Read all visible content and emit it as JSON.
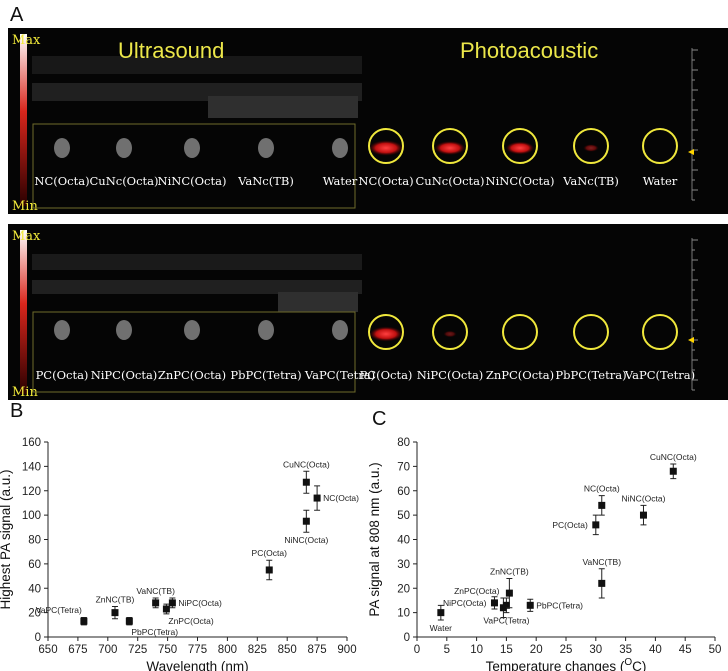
{
  "panel_labels": {
    "a": "A",
    "b": "B",
    "c": "C"
  },
  "panel_a": {
    "scale_max": "Max",
    "scale_min": "Min",
    "top": {
      "ultrasound_title": "Ultrasound",
      "photoacoustic_title": "Photoacoustic",
      "us_labels": [
        "NC(Octa)",
        "CuNc(Octa)",
        "NiNC(Octa)",
        "VaNc(TB)",
        "Water"
      ],
      "pa_labels": [
        "NC(Octa)",
        "CuNc(Octa)",
        "NiNC(Octa)",
        "VaNc(TB)",
        "Water"
      ],
      "pa_intensity": [
        0.95,
        0.8,
        0.7,
        0.15,
        0
      ]
    },
    "bottom": {
      "us_labels": [
        "PC(Octa)",
        "NiPC(Octa)",
        "ZnPC(Octa)",
        "PbPC(Tetra)",
        "VaPC(Tetra)"
      ],
      "pa_labels": [
        "PC(Octa)",
        "NiPC(Octa)",
        "ZnPC(Octa)",
        "PbPC(Tetra)",
        "VaPC(Tetra)"
      ],
      "pa_intensity": [
        0.9,
        0.05,
        0.02,
        0.02,
        0
      ]
    },
    "colors": {
      "circle": "#f0e83c",
      "signal": "#e0161a",
      "title": "#ece74a"
    }
  },
  "chart_data": [
    {
      "type": "scatter",
      "panel": "B",
      "xlabel": "Wavelength (nm)",
      "ylabel": "Highest PA signal (a.u.)",
      "xlim": [
        650,
        900
      ],
      "ylim": [
        0,
        160
      ],
      "xticks": [
        650,
        675,
        700,
        725,
        750,
        775,
        800,
        825,
        850,
        875,
        900
      ],
      "yticks": [
        0,
        20,
        40,
        60,
        80,
        100,
        120,
        140,
        160
      ],
      "grid": false,
      "marker_color": "#111111",
      "points": [
        {
          "label": "VaPC(Tetra)",
          "x": 680,
          "y": 13,
          "err": 3,
          "label_pos": "left-up"
        },
        {
          "label": "ZnNC(TB)",
          "x": 706,
          "y": 20,
          "err": 5,
          "label_pos": "up"
        },
        {
          "label": "PbPC(Tetra)",
          "x": 718,
          "y": 13,
          "err": 3,
          "label_pos": "right-down"
        },
        {
          "label": "VaNC(TB)",
          "x": 740,
          "y": 28,
          "err": 4,
          "label_pos": "up"
        },
        {
          "label": "ZnPC(Octa)",
          "x": 749,
          "y": 23,
          "err": 4,
          "label_pos": "right-down"
        },
        {
          "label": "NiPC(Octa)",
          "x": 754,
          "y": 28,
          "err": 4,
          "label_pos": "right"
        },
        {
          "label": "PC(Octa)",
          "x": 835,
          "y": 55,
          "err": 8,
          "label_pos": "up"
        },
        {
          "label": "NiNC(Octa)",
          "x": 866,
          "y": 95,
          "err": 9,
          "label_pos": "down"
        },
        {
          "label": "CuNC(Octa)",
          "x": 866,
          "y": 127,
          "err": 9,
          "label_pos": "up"
        },
        {
          "label": "NC(Octa)",
          "x": 875,
          "y": 114,
          "err": 10,
          "label_pos": "right"
        }
      ]
    },
    {
      "type": "scatter",
      "panel": "C",
      "xlabel": "Temperature changes (",
      "xlabel_super": "O",
      "xlabel_end": "C)",
      "ylabel": "PA signal at 808 nm (a.u.)",
      "xlim": [
        0,
        50
      ],
      "ylim": [
        0,
        80
      ],
      "xticks": [
        0,
        5,
        10,
        15,
        20,
        25,
        30,
        35,
        40,
        45,
        50
      ],
      "yticks": [
        0,
        10,
        20,
        30,
        40,
        50,
        60,
        70,
        80
      ],
      "grid": false,
      "marker_color": "#111111",
      "points": [
        {
          "label": "Water",
          "x": 4,
          "y": 10,
          "err": 3,
          "label_pos": "down"
        },
        {
          "label": "NiPC(Octa)",
          "x": 13,
          "y": 14,
          "err": 2.5,
          "label_pos": "left"
        },
        {
          "label": "ZnPC(Octa)",
          "x": 14.5,
          "y": 12,
          "err": 4,
          "label_pos": "up-left"
        },
        {
          "label": "VaPC(Tetra)",
          "x": 15,
          "y": 13,
          "err": 3,
          "label_pos": "down"
        },
        {
          "label": "ZnNC(TB)",
          "x": 15.5,
          "y": 18,
          "err": 6,
          "label_pos": "up"
        },
        {
          "label": "PbPC(Tetra)",
          "x": 19,
          "y": 13,
          "err": 2.5,
          "label_pos": "right"
        },
        {
          "label": "VaNC(TB)",
          "x": 31,
          "y": 22,
          "err": 6,
          "label_pos": "up"
        },
        {
          "label": "PC(Octa)",
          "x": 30,
          "y": 46,
          "err": 4,
          "label_pos": "left"
        },
        {
          "label": "NC(Octa)",
          "x": 31,
          "y": 54,
          "err": 4,
          "label_pos": "up"
        },
        {
          "label": "NiNC(Octa)",
          "x": 38,
          "y": 50,
          "err": 4,
          "label_pos": "up"
        },
        {
          "label": "CuNC(Octa)",
          "x": 43,
          "y": 68,
          "err": 3,
          "label_pos": "up"
        }
      ]
    }
  ]
}
